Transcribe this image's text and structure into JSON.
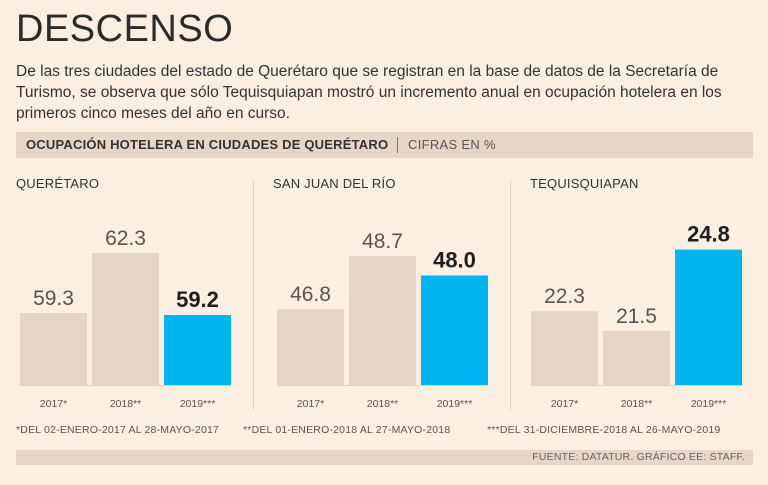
{
  "header": {
    "title": "DESCENSO",
    "intro": "De las tres ciudades del estado de Querétaro que se registran en la base de datos de la Secretaría de Turismo, se observa que sólo Tequisquiapan mostró un incremento anual en ocupación hotelera en los primeros cinco meses del año en curso."
  },
  "band": {
    "title": "OCUPACIÓN HOTELERA EN CIUDADES DE QUERÉTARO",
    "subtitle": "CIFRAS EN %"
  },
  "colors": {
    "past_bar": "#e6d6c9",
    "current_bar": "#00b4ef",
    "background": "#fbeee2"
  },
  "chart_data": [
    {
      "type": "bar",
      "title": "QUERÉTARO",
      "categories": [
        "2017*",
        "2018**",
        "2019***"
      ],
      "values": [
        59.3,
        62.3,
        59.2
      ],
      "value_labels": [
        "59.3",
        "62.3",
        "59.2"
      ],
      "highlight_index": 2,
      "ylim": [
        55.7,
        63.7
      ]
    },
    {
      "type": "bar",
      "title": "SAN JUAN DEL RÍO",
      "categories": [
        "2017*",
        "2018**",
        "2019***"
      ],
      "values": [
        46.8,
        48.7,
        48.0
      ],
      "value_labels": [
        "46.8",
        "48.7",
        "48.0"
      ],
      "highlight_index": 2,
      "ylim": [
        44.1,
        49.8
      ]
    },
    {
      "type": "bar",
      "title": "TEQUISQUIAPAN",
      "categories": [
        "2017*",
        "2018**",
        "2019***"
      ],
      "values": [
        22.3,
        21.5,
        24.8
      ],
      "value_labels": [
        "22.3",
        "21.5",
        "24.8"
      ],
      "highlight_index": 2,
      "ylim": [
        19.3,
        25.8
      ]
    }
  ],
  "notes": [
    "*DEL 02-ENERO-2017 AL 28-MAYO-2017",
    "**DEL 01-ENERO-2018 AL 27-MAYO-2018",
    "***DEL 31-DICIEMBRE-2018 AL 26-MAYO-2019"
  ],
  "footer": {
    "source": "FUENTE: DATATUR. GRÁFICO EE: STAFF."
  }
}
